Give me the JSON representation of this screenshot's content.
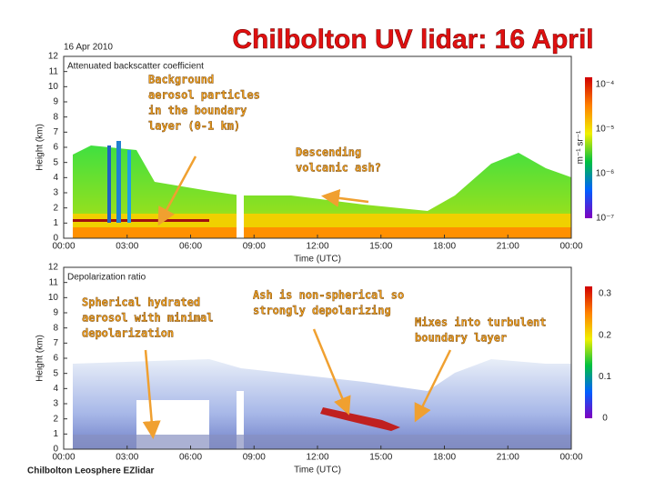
{
  "title": "Chilbolton UV lidar: 16 April",
  "panels": [
    {
      "date": "16 Apr 2010",
      "label": "Attenuated backscatter coefficient",
      "y_axis_label": "Height (km)",
      "y_ticks": [
        "0",
        "1",
        "2",
        "3",
        "4",
        "5",
        "6",
        "7",
        "8",
        "9",
        "10",
        "11",
        "12"
      ],
      "x_ticks": [
        "00:00",
        "03:00",
        "06:00",
        "09:00",
        "12:00",
        "15:00",
        "18:00",
        "21:00",
        "00:00"
      ],
      "x_axis_label": "Time (UTC)",
      "colorbar_label": "m⁻¹ sr⁻¹",
      "colorbar_ticks": [
        "10⁻⁴",
        "10⁻⁵",
        "10⁻⁶",
        "10⁻⁷"
      ]
    },
    {
      "label": "Depolarization ratio",
      "y_axis_label": "Height (km)",
      "y_ticks": [
        "0",
        "1",
        "2",
        "3",
        "4",
        "5",
        "6",
        "7",
        "8",
        "9",
        "10",
        "11",
        "12"
      ],
      "x_ticks": [
        "00:00",
        "03:00",
        "06:00",
        "09:00",
        "12:00",
        "15:00",
        "18:00",
        "21:00",
        "00:00"
      ],
      "x_axis_label": "Time (UTC)",
      "colorbar_ticks": [
        "0.3",
        "0.2",
        "0.1",
        "0"
      ]
    }
  ],
  "annotations": [
    {
      "lines": [
        "Background",
        "aerosol particles",
        "in the boundary",
        "layer (0-1 km)"
      ]
    },
    {
      "lines": [
        "Descending",
        "volcanic ash?"
      ]
    },
    {
      "lines": [
        "Spherical hydrated",
        "aerosol with minimal",
        "depolarization"
      ]
    },
    {
      "lines": [
        "Ash is non-spherical so",
        "strongly depolarizing"
      ]
    },
    {
      "lines": [
        "Mixes into turbulent",
        "boundary layer"
      ]
    }
  ],
  "footer": "Chilbolton Leosphere EZlidar"
}
